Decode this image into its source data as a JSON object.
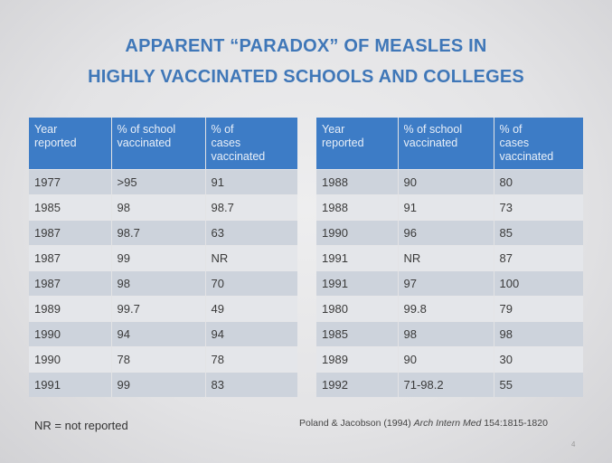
{
  "title": {
    "line1": "APPARENT “PARADOX” OF MEASLES IN",
    "line2": "HIGHLY VACCINATED SCHOOLS AND COLLEGES"
  },
  "tables": {
    "headers": [
      "Year\nreported",
      "% of school\nvaccinated",
      "% of\ncases\nvaccinated"
    ],
    "left_rows": [
      [
        "1977",
        ">95",
        "91"
      ],
      [
        "1985",
        "98",
        "98.7"
      ],
      [
        "1987",
        "98.7",
        "63"
      ],
      [
        "1987",
        "99",
        "NR"
      ],
      [
        "1987",
        "98",
        "70"
      ],
      [
        "1989",
        "99.7",
        "49"
      ],
      [
        "1990",
        "94",
        "94"
      ],
      [
        "1990",
        "78",
        "78"
      ],
      [
        "1991",
        "99",
        "83"
      ]
    ],
    "right_rows": [
      [
        "1988",
        "90",
        "80"
      ],
      [
        "1988",
        "91",
        "73"
      ],
      [
        "1990",
        "96",
        "85"
      ],
      [
        "1991",
        "NR",
        "87"
      ],
      [
        "1991",
        "97",
        "100"
      ],
      [
        "1980",
        "99.8",
        "79"
      ],
      [
        "1985",
        "98",
        "98"
      ],
      [
        "1989",
        "90",
        "30"
      ],
      [
        "1992",
        "71-98.2",
        "55"
      ]
    ]
  },
  "footnote": "NR = not reported",
  "citation": {
    "authors": "Poland & Jacobson (1994)",
    "journal": "Arch Intern Med",
    "ref": "154:1815-1820"
  },
  "page_number": "4"
}
